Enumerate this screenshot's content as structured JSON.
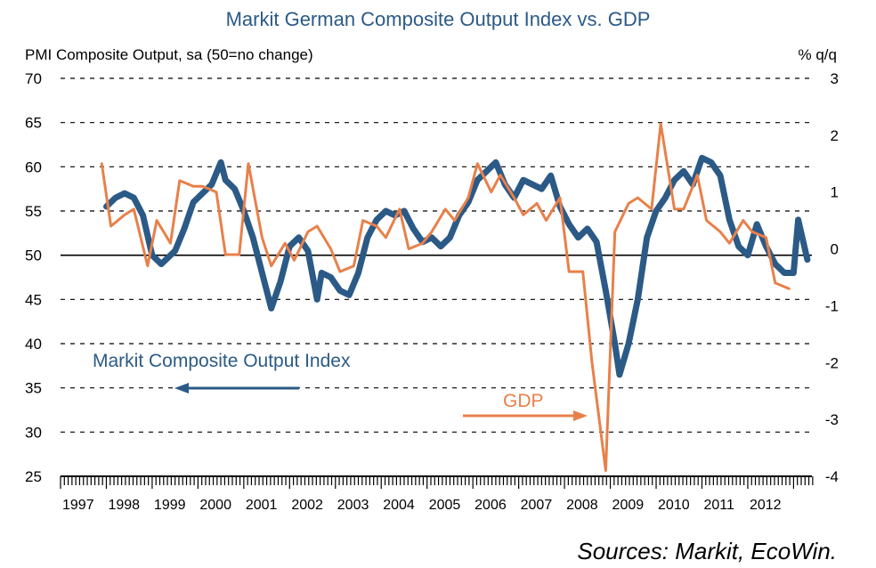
{
  "chart_data": {
    "type": "line",
    "title": "Markit German Composite Output Index vs. GDP",
    "ylabel_left": "PMI Composite Output, sa (50=no change)",
    "ylabel_right": "% q/q",
    "source": "Sources: Markit, EcoWin.",
    "left_axis": {
      "ylim": [
        25,
        70
      ],
      "ticks": [
        "70",
        "65",
        "60",
        "55",
        "50",
        "45",
        "40",
        "35",
        "30",
        "25"
      ]
    },
    "right_axis": {
      "ylim": [
        -4,
        3
      ],
      "ticks": [
        "3",
        "2",
        "1",
        "0",
        "-1",
        "-2",
        "-3",
        "-4"
      ]
    },
    "x_categories": [
      "1997",
      "1998",
      "1999",
      "2000",
      "2001",
      "2002",
      "2003",
      "2004",
      "2005",
      "2006",
      "2007",
      "2008",
      "2009",
      "2010",
      "2011",
      "2012"
    ],
    "annotations": {
      "pmi_label": "Markit Composite Output Index",
      "gdp_label": "GDP"
    },
    "colors": {
      "pmi": "#2b5a86",
      "gdp": "#e8804a",
      "title": "#2b5a86"
    },
    "grid": "dashed horizontal",
    "series": [
      {
        "name": "Markit Composite Output Index",
        "axis": "left",
        "x": [
          1998.0,
          1998.2,
          1998.4,
          1998.6,
          1998.8,
          1999.0,
          1999.2,
          1999.3,
          1999.5,
          1999.7,
          1999.9,
          2000.1,
          2000.3,
          2000.5,
          2000.6,
          2000.8,
          2001.0,
          2001.2,
          2001.4,
          2001.6,
          2001.8,
          2002.0,
          2002.2,
          2002.4,
          2002.6,
          2002.7,
          2002.9,
          2003.1,
          2003.3,
          2003.5,
          2003.7,
          2003.9,
          2004.1,
          2004.3,
          2004.5,
          2004.7,
          2004.9,
          2005.1,
          2005.3,
          2005.5,
          2005.7,
          2005.9,
          2006.1,
          2006.3,
          2006.5,
          2006.7,
          2006.9,
          2007.1,
          2007.3,
          2007.5,
          2007.7,
          2007.9,
          2008.1,
          2008.3,
          2008.5,
          2008.7,
          2008.9,
          2009.1,
          2009.2,
          2009.4,
          2009.6,
          2009.8,
          2010.0,
          2010.2,
          2010.4,
          2010.6,
          2010.8,
          2011.0,
          2011.2,
          2011.4,
          2011.6,
          2011.8,
          2012.0,
          2012.2,
          2012.4,
          2012.6,
          2012.8,
          2013.0,
          2013.1,
          2013.3
        ],
        "values": [
          55.5,
          56.5,
          57.0,
          56.5,
          54.5,
          50.0,
          49.0,
          49.5,
          50.5,
          53.0,
          56.0,
          57.0,
          58.0,
          60.5,
          58.5,
          57.5,
          55.0,
          52.0,
          48.0,
          44.0,
          47.0,
          51.0,
          52.0,
          50.5,
          45.0,
          48.0,
          47.5,
          46.0,
          45.5,
          48.0,
          52.0,
          54.0,
          55.0,
          54.5,
          55.0,
          53.0,
          51.5,
          52.0,
          51.0,
          52.0,
          54.5,
          56.0,
          58.5,
          59.5,
          60.5,
          58.0,
          56.5,
          58.5,
          58.0,
          57.5,
          59.0,
          55.5,
          53.5,
          52.0,
          53.0,
          51.5,
          46.0,
          40.0,
          36.5,
          40.0,
          45.0,
          52.0,
          55.0,
          56.5,
          58.5,
          59.5,
          58.0,
          61.0,
          60.5,
          59.0,
          54.0,
          51.0,
          50.0,
          53.5,
          51.0,
          49.0,
          48.0,
          48.0,
          54.0,
          49.5
        ]
      },
      {
        "name": "GDP",
        "axis": "right",
        "x": [
          1997.9,
          1998.1,
          1998.4,
          1998.6,
          1998.9,
          1999.1,
          1999.4,
          1999.6,
          1999.9,
          2000.1,
          2000.4,
          2000.6,
          2000.9,
          2001.1,
          2001.4,
          2001.6,
          2001.9,
          2002.1,
          2002.4,
          2002.6,
          2002.9,
          2003.1,
          2003.4,
          2003.6,
          2003.9,
          2004.1,
          2004.4,
          2004.6,
          2004.9,
          2005.1,
          2005.4,
          2005.6,
          2005.9,
          2006.1,
          2006.4,
          2006.6,
          2006.9,
          2007.1,
          2007.4,
          2007.6,
          2007.9,
          2008.1,
          2008.4,
          2008.6,
          2008.9,
          2009.1,
          2009.4,
          2009.6,
          2009.9,
          2010.1,
          2010.4,
          2010.6,
          2010.9,
          2011.1,
          2011.4,
          2011.6,
          2011.9,
          2012.1,
          2012.4,
          2012.6,
          2012.9
        ],
        "values": [
          1.5,
          0.4,
          0.6,
          0.7,
          -0.3,
          0.5,
          0.1,
          1.2,
          1.1,
          1.1,
          1.0,
          -0.1,
          -0.1,
          1.5,
          0.2,
          -0.3,
          0.1,
          -0.2,
          0.3,
          0.4,
          0.0,
          -0.4,
          -0.3,
          0.5,
          0.4,
          0.2,
          0.7,
          0.0,
          0.1,
          0.3,
          0.7,
          0.5,
          0.9,
          1.5,
          1.0,
          1.3,
          0.9,
          0.6,
          0.8,
          0.5,
          0.9,
          -0.4,
          -0.4,
          -2.0,
          -3.9,
          0.3,
          0.8,
          0.9,
          0.7,
          2.2,
          0.7,
          0.7,
          1.3,
          0.5,
          0.3,
          0.1,
          0.5,
          0.3,
          0.2,
          -0.6,
          -0.7
        ]
      }
    ]
  }
}
